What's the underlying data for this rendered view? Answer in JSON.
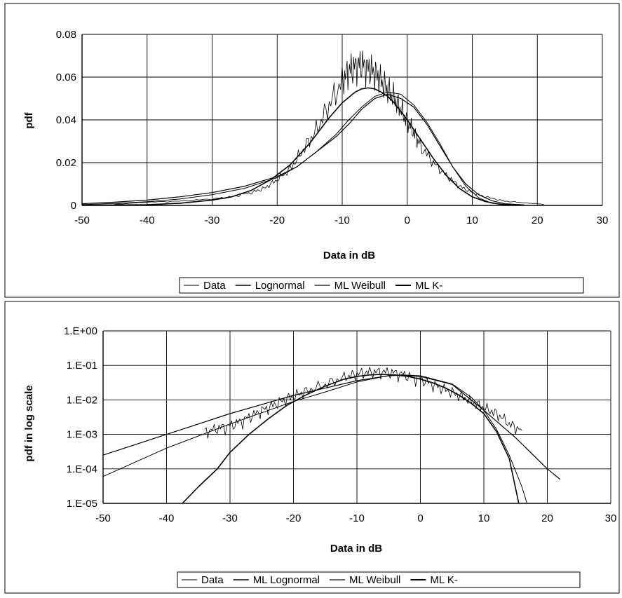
{
  "chart_data": [
    {
      "type": "line",
      "xlabel": "Data in dB",
      "ylabel": "pdf",
      "xlim": [
        -50,
        30
      ],
      "ylim": [
        0,
        0.08
      ],
      "x_ticks": [
        "-50",
        "-40",
        "-30",
        "-20",
        "-10",
        "0",
        "10",
        "20",
        "30"
      ],
      "y_ticks": [
        "0",
        "0.02",
        "0.04",
        "0.06",
        "0.08"
      ],
      "grid": true,
      "legend_position": "bottom",
      "series": [
        {
          "name": "Data",
          "x": [
            -45,
            -40,
            -35,
            -30,
            -27,
            -24,
            -22,
            -20,
            -18,
            -16,
            -14,
            -12,
            -10,
            -9,
            -8,
            -7,
            -6,
            -5,
            -4,
            -3,
            -2,
            -1,
            0,
            1,
            2,
            4,
            6,
            8,
            10,
            12,
            15,
            18,
            20,
            21
          ],
          "values": [
            0.0005,
            0.0015,
            0.002,
            0.003,
            0.004,
            0.006,
            0.008,
            0.012,
            0.017,
            0.026,
            0.035,
            0.047,
            0.058,
            0.063,
            0.065,
            0.066,
            0.064,
            0.062,
            0.058,
            0.054,
            0.05,
            0.045,
            0.039,
            0.034,
            0.028,
            0.02,
            0.014,
            0.009,
            0.006,
            0.004,
            0.002,
            0.0012,
            0.0008,
            0.0005
          ]
        },
        {
          "name": "Lognormal",
          "x": [
            -50,
            -45,
            -40,
            -35,
            -30,
            -25,
            -20,
            -17,
            -14,
            -11,
            -9,
            -7,
            -5,
            -3,
            -1,
            1,
            3,
            5,
            7,
            9,
            11,
            13,
            15,
            18
          ],
          "values": [
            0.0008,
            0.0015,
            0.0025,
            0.004,
            0.006,
            0.009,
            0.0135,
            0.018,
            0.025,
            0.032,
            0.038,
            0.045,
            0.05,
            0.052,
            0.05,
            0.046,
            0.038,
            0.028,
            0.018,
            0.01,
            0.005,
            0.0022,
            0.0008,
            0.0002
          ]
        },
        {
          "name": "ML Weibull",
          "x": [
            -50,
            -45,
            -40,
            -35,
            -30,
            -25,
            -20,
            -17,
            -14,
            -11,
            -9,
            -7,
            -5,
            -3,
            -1,
            1,
            3,
            5,
            7,
            9,
            11,
            13,
            15,
            18
          ],
          "values": [
            0.0004,
            0.0009,
            0.0017,
            0.003,
            0.005,
            0.008,
            0.013,
            0.018,
            0.025,
            0.033,
            0.04,
            0.046,
            0.051,
            0.053,
            0.052,
            0.047,
            0.039,
            0.029,
            0.018,
            0.009,
            0.0035,
            0.001,
            0.0002,
            2e-05
          ]
        },
        {
          "name": "ML K-",
          "x": [
            -50,
            -40,
            -35,
            -30,
            -27,
            -24,
            -21,
            -18,
            -15,
            -12,
            -10,
            -8,
            -7,
            -6,
            -5,
            -4,
            -3,
            -2,
            -1,
            0,
            2,
            4,
            6,
            8,
            10,
            12,
            14,
            16
          ],
          "values": [
            5e-05,
            0.0003,
            0.001,
            0.0025,
            0.004,
            0.007,
            0.012,
            0.019,
            0.029,
            0.041,
            0.048,
            0.053,
            0.0545,
            0.055,
            0.0545,
            0.053,
            0.051,
            0.048,
            0.044,
            0.04,
            0.031,
            0.022,
            0.014,
            0.008,
            0.004,
            0.0018,
            0.0007,
            0.0002
          ]
        }
      ],
      "legend": [
        "Data",
        "Lognormal",
        "ML Weibull",
        "ML K-"
      ]
    },
    {
      "type": "line",
      "xlabel": "Data in dB",
      "ylabel": "pdf in log scale",
      "xlim": [
        -50,
        30
      ],
      "ylim": [
        1e-05,
        1
      ],
      "y_scale": "log",
      "x_ticks": [
        "-50",
        "-40",
        "-30",
        "-20",
        "-10",
        "0",
        "10",
        "20",
        "30"
      ],
      "y_ticks": [
        "1.E+00",
        "1.E-01",
        "1.E-02",
        "1.E-03",
        "1.E-04",
        "1.E-05"
      ],
      "grid": true,
      "legend_position": "bottom",
      "series": [
        {
          "name": "Data",
          "x": [
            -34,
            -32,
            -30,
            -28,
            -26,
            -24,
            -22,
            -20,
            -18,
            -15,
            -12,
            -10,
            -8,
            -6,
            -4,
            -2,
            0,
            2,
            4,
            6,
            8,
            10,
            12,
            14,
            16
          ],
          "values": [
            0.0012,
            0.0015,
            0.0018,
            0.0025,
            0.004,
            0.006,
            0.009,
            0.013,
            0.018,
            0.028,
            0.045,
            0.058,
            0.065,
            0.066,
            0.062,
            0.05,
            0.04,
            0.028,
            0.02,
            0.014,
            0.009,
            0.006,
            0.004,
            0.002,
            0.0013
          ]
        },
        {
          "name": "ML Lognormal",
          "x": [
            -50,
            -40,
            -30,
            -20,
            -15,
            -10,
            -5,
            -3,
            0,
            5,
            10,
            15,
            20,
            22
          ],
          "values": [
            0.00025,
            0.001,
            0.004,
            0.0135,
            0.022,
            0.036,
            0.05,
            0.052,
            0.048,
            0.028,
            0.005,
            0.0008,
            0.0001,
            5e-05
          ]
        },
        {
          "name": "ML Weibull",
          "x": [
            -50,
            -40,
            -30,
            -20,
            -15,
            -10,
            -5,
            -3,
            0,
            5,
            8,
            10,
            12,
            14,
            16,
            16.8
          ],
          "values": [
            6e-05,
            0.0004,
            0.002,
            0.009,
            0.017,
            0.033,
            0.051,
            0.053,
            0.05,
            0.029,
            0.012,
            0.005,
            0.0014,
            0.00025,
            3e-05,
            1e-05
          ]
        },
        {
          "name": "ML K-",
          "x": [
            -37.5,
            -35,
            -32,
            -30,
            -27,
            -24,
            -21,
            -18,
            -15,
            -12,
            -10,
            -8,
            -6,
            -4,
            -2,
            0,
            2,
            4,
            6,
            8,
            10,
            12,
            14,
            15.5
          ],
          "values": [
            1e-05,
            3e-05,
            0.0001,
            0.0003,
            0.001,
            0.0028,
            0.007,
            0.014,
            0.025,
            0.04,
            0.048,
            0.053,
            0.055,
            0.053,
            0.048,
            0.04,
            0.031,
            0.022,
            0.014,
            0.008,
            0.004,
            0.0012,
            0.0002,
            1e-05
          ]
        }
      ],
      "legend": [
        "Data",
        "ML Lognormal",
        "ML Weibull",
        "ML K-"
      ]
    }
  ]
}
